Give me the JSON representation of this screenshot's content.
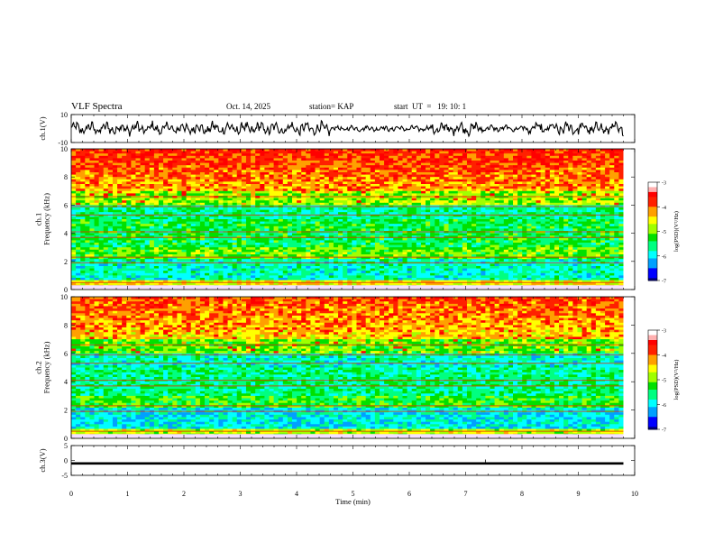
{
  "header": {
    "title": "VLF Spectra",
    "date": "Oct. 14, 2025",
    "station": "station= KAP",
    "start": "start  UT  =   19: 10: 1"
  },
  "chart_data": [
    {
      "type": "line",
      "ylabel": "ch.1(V)",
      "ylim": [
        -10,
        10
      ],
      "yticks": [
        "10",
        "-10"
      ],
      "xlim": [
        0,
        10
      ],
      "series": [
        {
          "values": "waveform, approx. range -7 to 7 V over 0-9.8 min"
        }
      ]
    },
    {
      "type": "heatmap",
      "ylabel": "ch.1\nFrequency (kHz)",
      "ylim": [
        0,
        10
      ],
      "yticks": [
        "0",
        "2",
        "4",
        "6",
        "8",
        "10"
      ],
      "xlim": [
        0,
        10
      ],
      "data_end_min": 9.8,
      "colorbar": {
        "label": "log(PSD)(V²/Hz)",
        "range": [
          -7,
          -3
        ],
        "ticks": [
          "-3",
          "-4",
          "-5",
          "-6",
          "-7"
        ]
      }
    },
    {
      "type": "heatmap",
      "ylabel": "ch.2\nFrequency (kHz)",
      "ylim": [
        0,
        10
      ],
      "yticks": [
        "0",
        "2",
        "4",
        "6",
        "8",
        "10"
      ],
      "xlim": [
        0,
        10
      ],
      "data_end_min": 9.8,
      "colorbar": {
        "label": "log(PSD)(V²/Hz)",
        "range": [
          -7,
          -3
        ],
        "ticks": [
          "-3",
          "-4",
          "-5",
          "-6",
          "-7"
        ]
      }
    },
    {
      "type": "line",
      "ylabel": "ch.3(V)",
      "ylim": [
        -5,
        5
      ],
      "yticks": [
        "5",
        "0",
        "-5"
      ],
      "xlim": [
        0,
        10
      ],
      "xlabel": "Time  (min)",
      "xticks": [
        "0",
        "1",
        "2",
        "3",
        "4",
        "5",
        "6",
        "7",
        "8",
        "9",
        "10"
      ],
      "series": [
        {
          "values": "constant approx. -1 V over 0-9.8 min"
        }
      ]
    }
  ],
  "colors": {
    "scale": [
      "#000080",
      "#0000ff",
      "#00a0ff",
      "#00ffff",
      "#00ff80",
      "#00e000",
      "#a0ff00",
      "#ffff00",
      "#ffa000",
      "#ff2000",
      "#ff0000",
      "#ffb0b0",
      "#ffffff"
    ]
  }
}
